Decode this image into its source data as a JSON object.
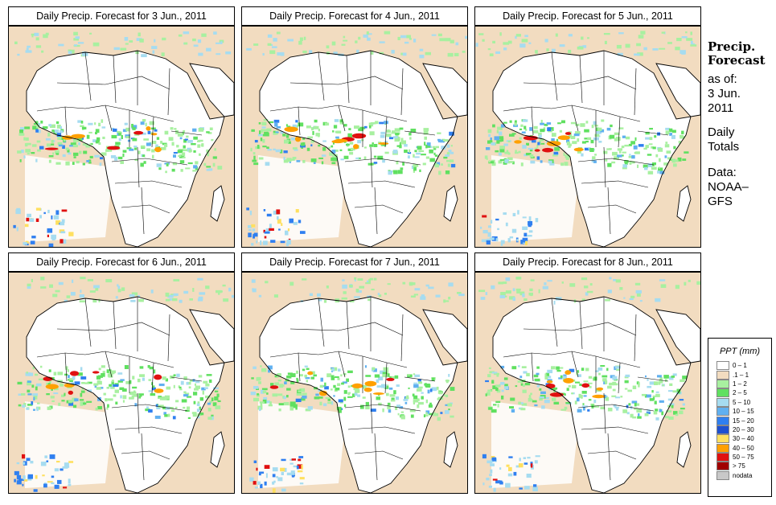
{
  "panels": [
    {
      "title": "Daily Precip. Forecast for  3 Jun., 2011",
      "date": "3 Jun., 2011",
      "day": 0
    },
    {
      "title": "Daily Precip. Forecast for  4 Jun., 2011",
      "date": "4 Jun., 2011",
      "day": 1
    },
    {
      "title": "Daily Precip. Forecast for  5 Jun., 2011",
      "date": "5 Jun., 2011",
      "day": 2
    },
    {
      "title": "Daily Precip. Forecast for  6 Jun., 2011",
      "date": "6 Jun., 2011",
      "day": 3
    },
    {
      "title": "Daily Precip. Forecast for  7 Jun., 2011",
      "date": "7 Jun., 2011",
      "day": 4
    },
    {
      "title": "Daily Precip. Forecast for  8 Jun., 2011",
      "date": "8 Jun., 2011",
      "day": 5
    }
  ],
  "sidebar": {
    "title_line1": "Precip.",
    "title_line2": "Forecast",
    "asof": "as of:",
    "date_line1": "3 Jun.",
    "date_line2": "2011",
    "daily_line1": "Daily",
    "daily_line2": "Totals",
    "data_line1": "Data:",
    "data_line2": "NOAA–",
    "data_line3": "GFS"
  },
  "legend": {
    "title": "PPT (mm)",
    "items": [
      {
        "label": "0 – 1",
        "color": "#ffffff"
      },
      {
        "label": ".1 – 1",
        "color": "#f2dcc0"
      },
      {
        "label": "1 – 2",
        "color": "#a8f0a0"
      },
      {
        "label": "2 – 5",
        "color": "#60e060"
      },
      {
        "label": "5 – 10",
        "color": "#a6dcf0"
      },
      {
        "label": "10 – 15",
        "color": "#60b0f0"
      },
      {
        "label": "15 – 20",
        "color": "#2f7ff0"
      },
      {
        "label": "20 – 30",
        "color": "#1e50d0"
      },
      {
        "label": "30 – 40",
        "color": "#ffe060"
      },
      {
        "label": "40 – 50",
        "color": "#ffa000"
      },
      {
        "label": "50 – 75",
        "color": "#e01010"
      },
      {
        "label": "> 75",
        "color": "#a00000"
      },
      {
        "label": "nodata",
        "color": "#c8c8c8"
      }
    ]
  }
}
